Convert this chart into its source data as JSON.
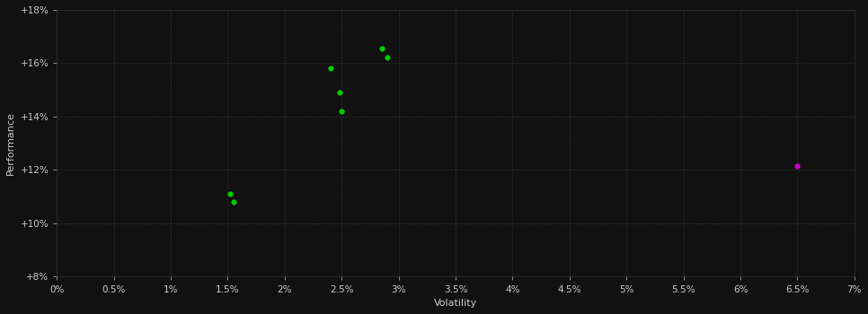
{
  "xlabel": "Volatility",
  "ylabel": "Performance",
  "background_color": "#111111",
  "grid_color": "#333333",
  "text_color": "#cccccc",
  "green_points": [
    [
      1.52,
      11.1
    ],
    [
      1.55,
      10.8
    ],
    [
      2.4,
      15.8
    ],
    [
      2.48,
      14.9
    ],
    [
      2.5,
      14.2
    ],
    [
      2.85,
      16.55
    ],
    [
      2.9,
      16.2
    ]
  ],
  "magenta_points": [
    [
      6.5,
      12.15
    ]
  ],
  "green_color": "#00cc00",
  "magenta_color": "#cc00cc",
  "xlim": [
    0.0,
    7.0
  ],
  "ylim": [
    8.0,
    18.0
  ],
  "xtick_values": [
    0.0,
    0.5,
    1.0,
    1.5,
    2.0,
    2.5,
    3.0,
    3.5,
    4.0,
    4.5,
    5.0,
    5.5,
    6.0,
    6.5,
    7.0
  ],
  "xtick_labels": [
    "0%",
    "0.5%",
    "1%",
    "1.5%",
    "2%",
    "2.5%",
    "3%",
    "3.5%",
    "4%",
    "4.5%",
    "5%",
    "5.5%",
    "6%",
    "6.5%",
    "7%"
  ],
  "ytick_values": [
    8.0,
    10.0,
    12.0,
    14.0,
    16.0,
    18.0
  ],
  "ytick_labels": [
    "+8%",
    "+10%",
    "+12%",
    "+14%",
    "+16%",
    "+18%"
  ],
  "marker_size": 20
}
